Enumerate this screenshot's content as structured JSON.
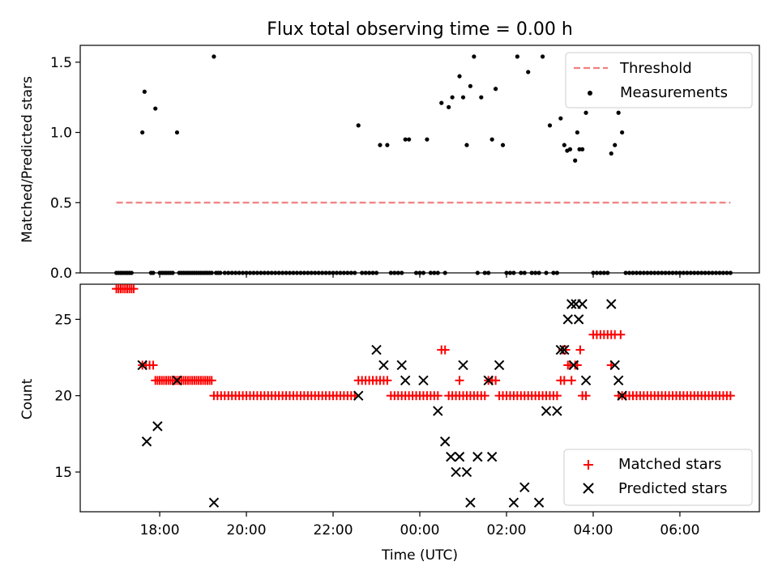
{
  "chart_data": [
    {
      "type": "scatter",
      "title": "Flux total observing time = 0.00 h",
      "ylabel": "Matched/Predicted stars",
      "xlabel": "",
      "ylim": [
        0,
        1.62
      ],
      "yticks": [
        0.0,
        0.5,
        1.0,
        1.5
      ],
      "ytick_labels": [
        "0.0",
        "0.5",
        "1.0",
        "1.5"
      ],
      "legend_placement": "top-right",
      "threshold": {
        "name": "Threshold",
        "value": 0.5,
        "x_range": [
          "17:00",
          "07:10"
        ],
        "color": "#f08080"
      },
      "series": [
        {
          "name": "Measurements",
          "color": "#000000",
          "points": [
            [
              "17:00",
              0
            ],
            [
              "17:03",
              0
            ],
            [
              "17:06",
              0
            ],
            [
              "17:09",
              0
            ],
            [
              "17:12",
              0
            ],
            [
              "17:15",
              0
            ],
            [
              "17:18",
              0
            ],
            [
              "17:21",
              0
            ],
            [
              "17:36",
              1.0
            ],
            [
              "17:39",
              1.29
            ],
            [
              "17:48",
              0
            ],
            [
              "17:51",
              0
            ],
            [
              "17:54",
              1.17
            ],
            [
              "18:00",
              0
            ],
            [
              "18:03",
              0
            ],
            [
              "18:06",
              0
            ],
            [
              "18:09",
              0
            ],
            [
              "18:12",
              0
            ],
            [
              "18:15",
              0
            ],
            [
              "18:18",
              0
            ],
            [
              "18:24",
              1.0
            ],
            [
              "18:27",
              0
            ],
            [
              "18:30",
              0
            ],
            [
              "18:33",
              0
            ],
            [
              "18:36",
              0
            ],
            [
              "18:39",
              0
            ],
            [
              "18:42",
              0
            ],
            [
              "18:45",
              0
            ],
            [
              "18:48",
              0
            ],
            [
              "18:51",
              0
            ],
            [
              "18:54",
              0
            ],
            [
              "18:57",
              0
            ],
            [
              "19:00",
              0
            ],
            [
              "19:03",
              0
            ],
            [
              "19:06",
              0
            ],
            [
              "19:09",
              0
            ],
            [
              "19:12",
              0
            ],
            [
              "19:15",
              1.54
            ],
            [
              "19:18",
              0
            ],
            [
              "19:21",
              0
            ],
            [
              "19:24",
              0
            ],
            [
              "19:30",
              0
            ],
            [
              "19:35",
              0
            ],
            [
              "19:40",
              0
            ],
            [
              "19:45",
              0
            ],
            [
              "19:50",
              0
            ],
            [
              "19:55",
              0
            ],
            [
              "20:00",
              0
            ],
            [
              "20:05",
              0
            ],
            [
              "20:10",
              0
            ],
            [
              "20:15",
              0
            ],
            [
              "20:20",
              0
            ],
            [
              "20:25",
              0
            ],
            [
              "20:30",
              0
            ],
            [
              "20:35",
              0
            ],
            [
              "20:40",
              0
            ],
            [
              "20:45",
              0
            ],
            [
              "20:50",
              0
            ],
            [
              "20:55",
              0
            ],
            [
              "21:00",
              0
            ],
            [
              "21:05",
              0
            ],
            [
              "21:10",
              0
            ],
            [
              "21:15",
              0
            ],
            [
              "21:20",
              0
            ],
            [
              "21:25",
              0
            ],
            [
              "21:30",
              0
            ],
            [
              "21:35",
              0
            ],
            [
              "21:40",
              0
            ],
            [
              "21:45",
              0
            ],
            [
              "21:50",
              0
            ],
            [
              "21:55",
              0
            ],
            [
              "22:00",
              0
            ],
            [
              "22:05",
              0
            ],
            [
              "22:10",
              0
            ],
            [
              "22:15",
              0
            ],
            [
              "22:20",
              0
            ],
            [
              "22:25",
              0
            ],
            [
              "22:30",
              0
            ],
            [
              "22:35",
              1.05
            ],
            [
              "22:40",
              0
            ],
            [
              "22:45",
              0
            ],
            [
              "22:50",
              0
            ],
            [
              "22:55",
              0
            ],
            [
              "23:00",
              0
            ],
            [
              "23:05",
              0.91
            ],
            [
              "23:15",
              0.91
            ],
            [
              "23:20",
              0
            ],
            [
              "23:25",
              0
            ],
            [
              "23:30",
              0
            ],
            [
              "23:35",
              0
            ],
            [
              "23:40",
              0.95
            ],
            [
              "23:45",
              0.95
            ],
            [
              "23:55",
              0
            ],
            [
              "00:00",
              0
            ],
            [
              "00:05",
              0
            ],
            [
              "00:10",
              0.95
            ],
            [
              "00:15",
              0
            ],
            [
              "00:20",
              0
            ],
            [
              "00:25",
              0
            ],
            [
              "00:30",
              1.21
            ],
            [
              "00:35",
              0
            ],
            [
              "00:40",
              1.18
            ],
            [
              "00:45",
              1.25
            ],
            [
              "00:55",
              1.4
            ],
            [
              "01:00",
              1.25
            ],
            [
              "01:05",
              0.91
            ],
            [
              "01:10",
              1.33
            ],
            [
              "01:15",
              1.54
            ],
            [
              "01:20",
              0
            ],
            [
              "01:25",
              1.25
            ],
            [
              "01:30",
              0
            ],
            [
              "01:35",
              0
            ],
            [
              "01:40",
              0.95
            ],
            [
              "01:45",
              1.31
            ],
            [
              "01:55",
              0.91
            ],
            [
              "02:00",
              0
            ],
            [
              "02:05",
              0
            ],
            [
              "02:10",
              0
            ],
            [
              "02:15",
              1.54
            ],
            [
              "02:20",
              0
            ],
            [
              "02:25",
              0
            ],
            [
              "02:30",
              1.43
            ],
            [
              "02:35",
              0
            ],
            [
              "02:40",
              0
            ],
            [
              "02:45",
              0
            ],
            [
              "02:50",
              1.54
            ],
            [
              "02:55",
              0
            ],
            [
              "03:00",
              1.05
            ],
            [
              "03:05",
              0
            ],
            [
              "03:10",
              0
            ],
            [
              "03:15",
              1.1
            ],
            [
              "03:20",
              0.91
            ],
            [
              "03:24",
              0.87
            ],
            [
              "03:28",
              0.88
            ],
            [
              "03:35",
              0.8
            ],
            [
              "03:38",
              1.0
            ],
            [
              "03:41",
              0.88
            ],
            [
              "03:45",
              0.88
            ],
            [
              "03:50",
              1.14
            ],
            [
              "04:00",
              0
            ],
            [
              "04:05",
              0
            ],
            [
              "04:10",
              0
            ],
            [
              "04:15",
              0
            ],
            [
              "04:20",
              0
            ],
            [
              "04:25",
              0.85
            ],
            [
              "04:30",
              0.91
            ],
            [
              "04:35",
              1.14
            ],
            [
              "04:40",
              1.0
            ],
            [
              "04:45",
              0
            ],
            [
              "04:50",
              0
            ],
            [
              "04:55",
              0
            ],
            [
              "05:00",
              0
            ],
            [
              "05:05",
              0
            ],
            [
              "05:10",
              0
            ],
            [
              "05:15",
              0
            ],
            [
              "05:20",
              0
            ],
            [
              "05:25",
              0
            ],
            [
              "05:30",
              0
            ],
            [
              "05:35",
              0
            ],
            [
              "05:40",
              0
            ],
            [
              "05:45",
              0
            ],
            [
              "05:50",
              0
            ],
            [
              "05:55",
              0
            ],
            [
              "06:00",
              0
            ],
            [
              "06:05",
              0
            ],
            [
              "06:10",
              0
            ],
            [
              "06:15",
              0
            ],
            [
              "06:20",
              0
            ],
            [
              "06:25",
              0
            ],
            [
              "06:30",
              0
            ],
            [
              "06:35",
              0
            ],
            [
              "06:40",
              0
            ],
            [
              "06:45",
              0
            ],
            [
              "06:50",
              0
            ],
            [
              "06:55",
              0
            ],
            [
              "07:00",
              0
            ],
            [
              "07:05",
              0
            ],
            [
              "07:10",
              0
            ]
          ]
        }
      ]
    },
    {
      "type": "scatter",
      "title": "",
      "ylabel": "Count",
      "xlabel": "Time (UTC)",
      "ylim": [
        12.4,
        27.3
      ],
      "yticks": [
        15,
        20,
        25
      ],
      "ytick_labels": [
        "15",
        "20",
        "25"
      ],
      "x_range": [
        "16:10",
        "07:50"
      ],
      "xticks": [
        "18:00",
        "20:00",
        "22:00",
        "00:00",
        "02:00",
        "04:00",
        "06:00"
      ],
      "xtick_labels": [
        "18:00",
        "20:00",
        "22:00",
        "00:00",
        "02:00",
        "04:00",
        "06:00"
      ],
      "legend_placement": "bottom-right",
      "series": [
        {
          "name": "Matched stars",
          "marker": "plus",
          "color": "#ff0000",
          "groups": [
            {
              "from": "17:00",
              "to": "17:25",
              "step": 3,
              "value": 27
            },
            {
              "from": "17:36",
              "to": "17:51",
              "step": 5,
              "value": 22
            },
            {
              "from": "17:54",
              "to": "19:12",
              "step": 3,
              "value": 21
            },
            {
              "from": "19:15",
              "to": "22:30",
              "step": 5,
              "value": 20
            },
            {
              "from": "22:35",
              "to": "23:15",
              "step": 5,
              "value": 21
            },
            {
              "from": "23:20",
              "to": "00:25",
              "step": 5,
              "value": 20
            },
            {
              "from": "00:30",
              "to": "00:35",
              "step": 5,
              "value": 23
            },
            {
              "from": "00:40",
              "to": "01:30",
              "step": 5,
              "value": 20
            },
            {
              "from": "01:35",
              "to": "01:45",
              "step": 5,
              "value": 21
            },
            {
              "from": "01:50",
              "to": "03:10",
              "step": 5,
              "value": 20
            },
            {
              "from": "03:15",
              "to": "03:20",
              "step": 5,
              "value": 21
            },
            {
              "from": "03:45",
              "to": "03:50",
              "step": 5,
              "value": 20
            },
            {
              "from": "04:00",
              "to": "04:30",
              "step": 5,
              "value": 24
            },
            {
              "from": "04:35",
              "to": "07:10",
              "step": 5,
              "value": 20
            }
          ],
          "points": [
            [
              "00:55",
              21
            ],
            [
              "03:18",
              23
            ],
            [
              "03:22",
              23
            ],
            [
              "03:25",
              22
            ],
            [
              "03:28",
              22
            ],
            [
              "03:30",
              21
            ],
            [
              "03:35",
              22
            ],
            [
              "03:38",
              22
            ],
            [
              "03:42",
              23
            ],
            [
              "04:25",
              22
            ],
            [
              "04:38",
              24
            ]
          ]
        },
        {
          "name": "Predicted stars",
          "marker": "x",
          "color": "#000000",
          "points": [
            [
              "17:36",
              22
            ],
            [
              "17:42",
              17
            ],
            [
              "17:57",
              18
            ],
            [
              "18:24",
              21
            ],
            [
              "19:15",
              13
            ],
            [
              "22:35",
              20
            ],
            [
              "23:00",
              23
            ],
            [
              "23:10",
              22
            ],
            [
              "23:35",
              22
            ],
            [
              "23:40",
              21
            ],
            [
              "00:05",
              21
            ],
            [
              "00:25",
              19
            ],
            [
              "00:35",
              17
            ],
            [
              "00:43",
              16
            ],
            [
              "00:50",
              15
            ],
            [
              "00:55",
              16
            ],
            [
              "01:00",
              22
            ],
            [
              "01:05",
              15
            ],
            [
              "01:10",
              13
            ],
            [
              "01:20",
              16
            ],
            [
              "01:35",
              21
            ],
            [
              "01:40",
              16
            ],
            [
              "01:50",
              22
            ],
            [
              "02:10",
              13
            ],
            [
              "02:25",
              14
            ],
            [
              "02:45",
              13
            ],
            [
              "02:55",
              19
            ],
            [
              "03:10",
              19
            ],
            [
              "03:15",
              23
            ],
            [
              "03:20",
              23
            ],
            [
              "03:25",
              25
            ],
            [
              "03:30",
              26
            ],
            [
              "03:33",
              22
            ],
            [
              "03:36",
              26
            ],
            [
              "03:40",
              25
            ],
            [
              "03:45",
              26
            ],
            [
              "03:50",
              21
            ],
            [
              "04:25",
              26
            ],
            [
              "04:30",
              22
            ],
            [
              "04:35",
              21
            ],
            [
              "04:40",
              20
            ]
          ]
        }
      ]
    }
  ]
}
